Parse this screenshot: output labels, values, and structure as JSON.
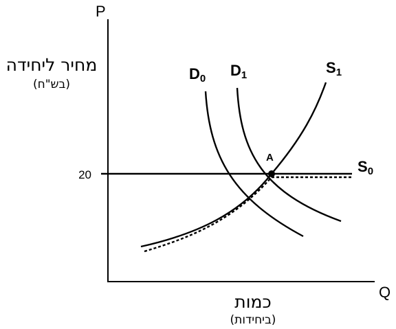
{
  "axes": {
    "y_letter": "P",
    "x_letter": "Q",
    "y_title": "מחיר ליחידה",
    "y_unit": "(בש\"ח)",
    "x_title": "כמות",
    "x_unit": "(ביחידות)",
    "y_tick": "20"
  },
  "curves": {
    "d0": {
      "letter": "D",
      "sub": "0"
    },
    "d1": {
      "letter": "D",
      "sub": "1"
    },
    "s1": {
      "letter": "S",
      "sub": "1"
    },
    "s0": {
      "letter": "S",
      "sub": "0"
    }
  },
  "point": "A"
}
